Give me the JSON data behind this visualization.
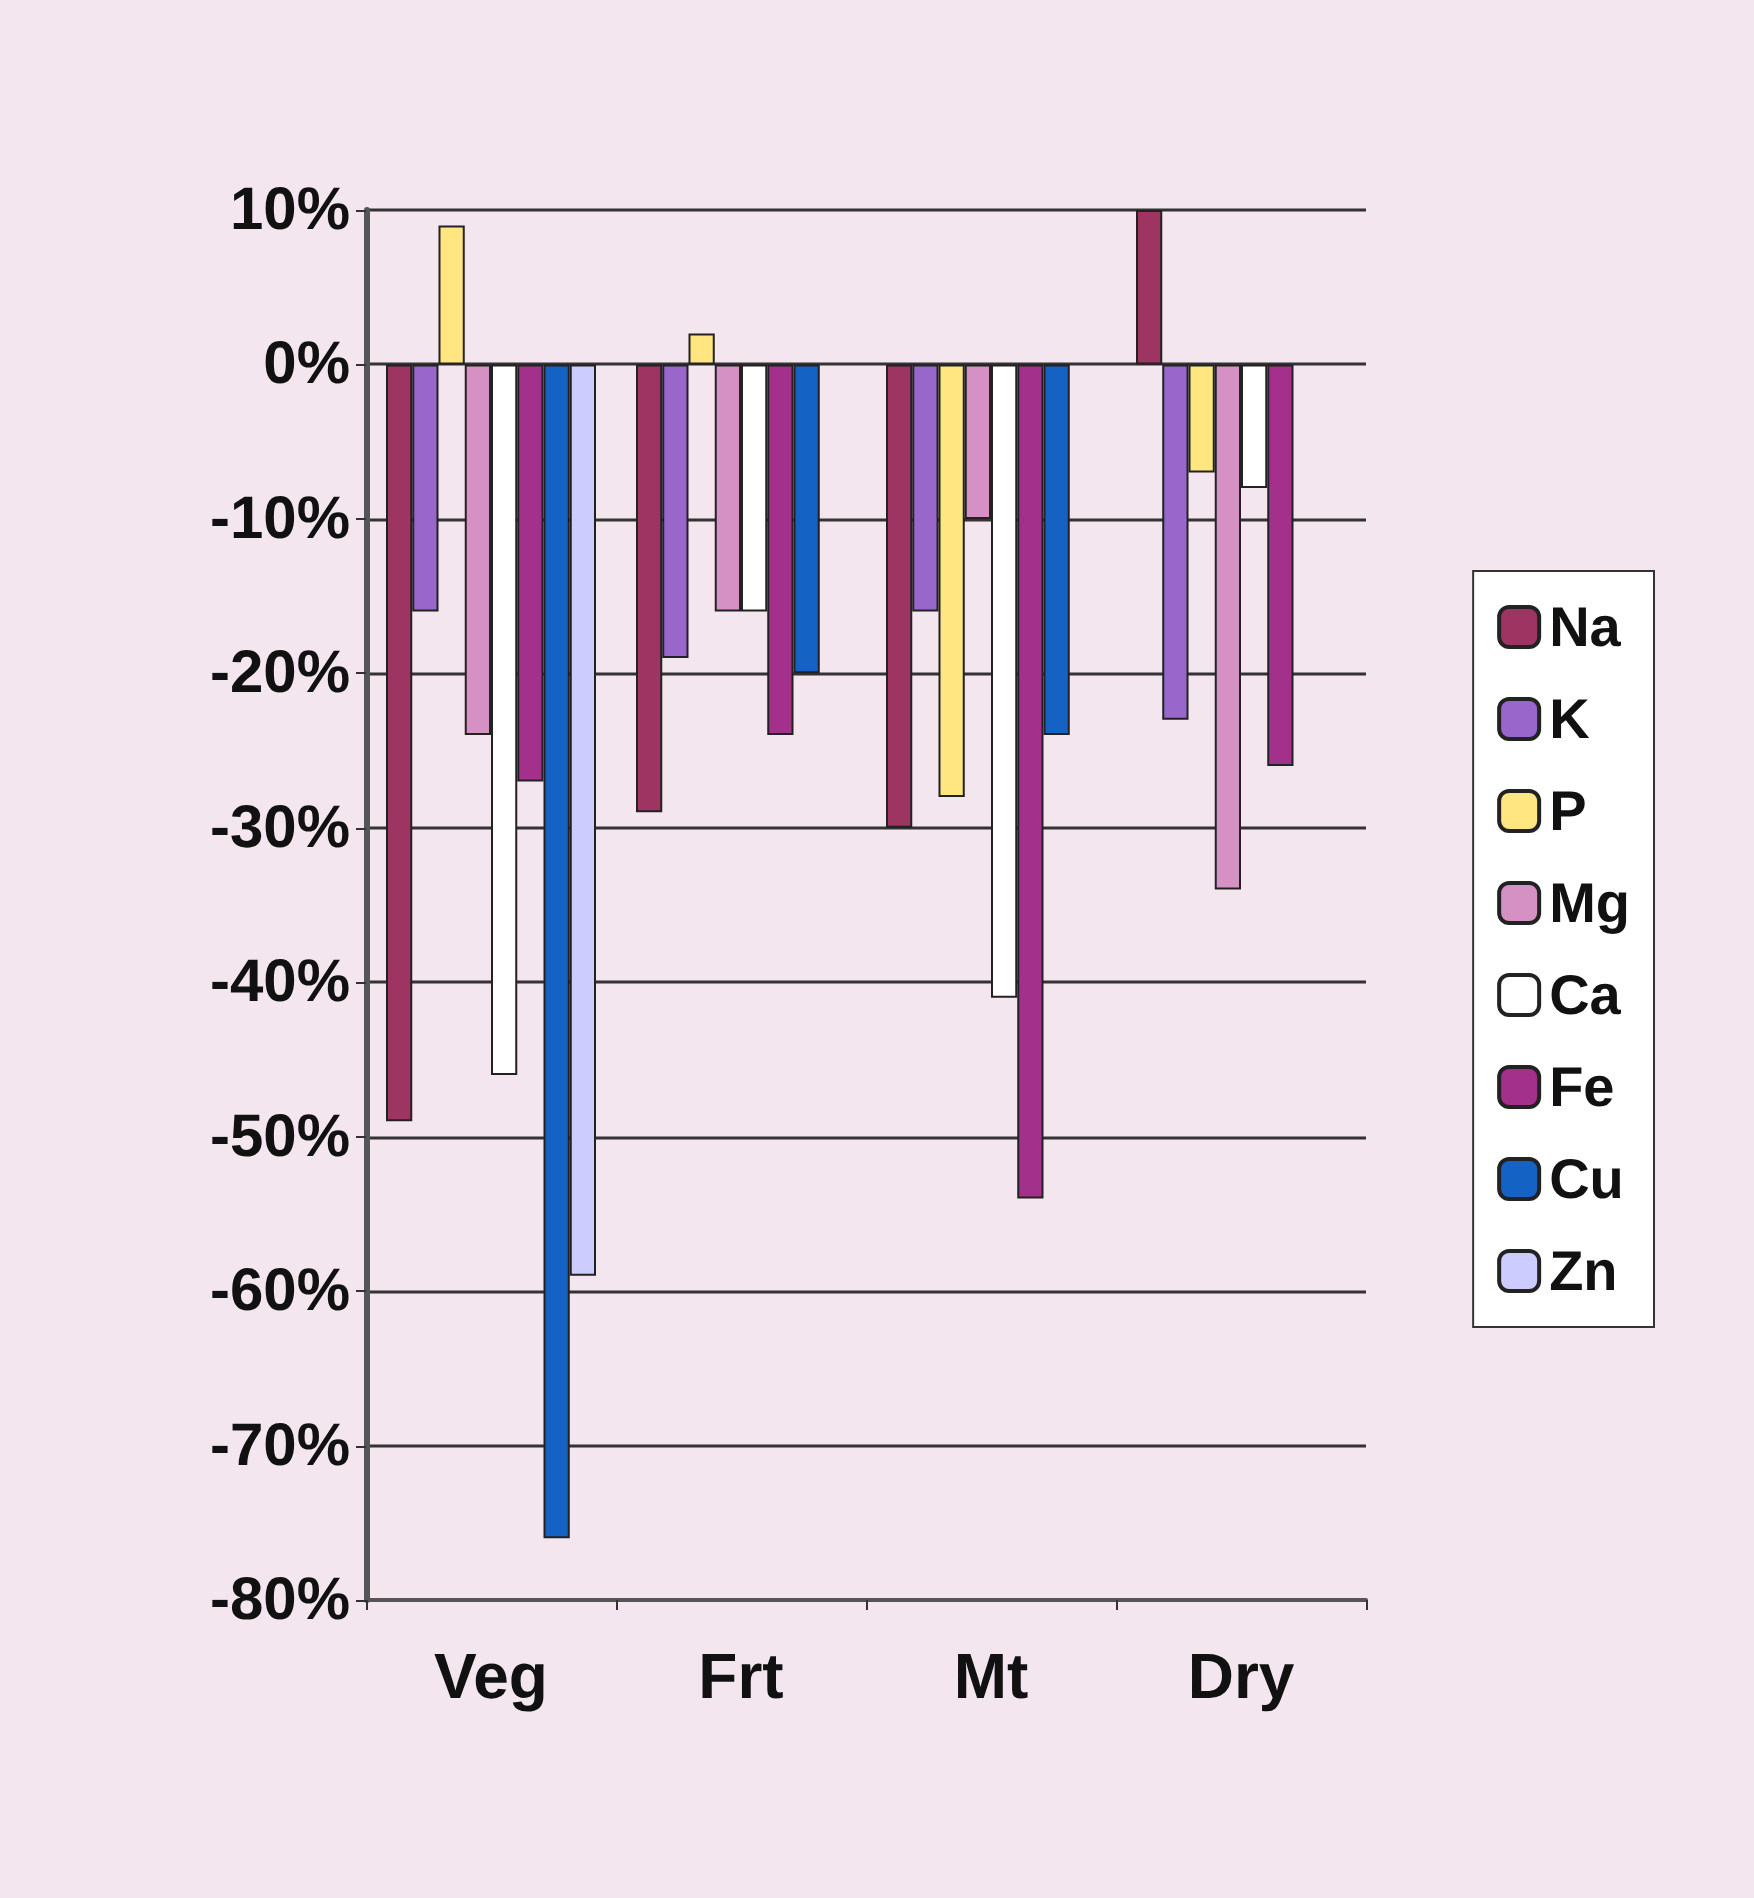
{
  "chart_data": {
    "type": "bar",
    "categories": [
      "Veg",
      "Frt",
      "Mt",
      "Dry"
    ],
    "series": [
      {
        "name": "Na",
        "color": "#9e3462",
        "values": [
          -49,
          -29,
          -30,
          10
        ]
      },
      {
        "name": "K",
        "color": "#9966cc",
        "values": [
          -16,
          -19,
          -16,
          -23
        ]
      },
      {
        "name": "P",
        "color": "#ffe680",
        "values": [
          9,
          2,
          -28,
          -7
        ]
      },
      {
        "name": "Mg",
        "color": "#d590c4",
        "values": [
          -24,
          -16,
          -10,
          -34
        ]
      },
      {
        "name": "Ca",
        "color": "#ffffff",
        "values": [
          -46,
          -16,
          -41,
          -8
        ]
      },
      {
        "name": "Fe",
        "color": "#a3308a",
        "values": [
          -27,
          -24,
          -54,
          -26
        ]
      },
      {
        "name": "Cu",
        "color": "#1463c4",
        "values": [
          -76,
          -20,
          -24,
          null
        ]
      },
      {
        "name": "Zn",
        "color": "#ccccff",
        "values": [
          -59,
          null,
          null,
          null
        ]
      }
    ],
    "ylim": [
      -80,
      10
    ],
    "yticks": [
      {
        "value": -80,
        "label": "-80%"
      },
      {
        "value": -70,
        "label": "-70%"
      },
      {
        "value": -60,
        "label": "-60%"
      },
      {
        "value": -50,
        "label": "-50%"
      },
      {
        "value": -40,
        "label": "-40%"
      },
      {
        "value": -30,
        "label": "-30%"
      },
      {
        "value": -20,
        "label": "-20%"
      },
      {
        "value": -10,
        "label": "-10%"
      },
      {
        "value": 0,
        "label": "0%"
      },
      {
        "value": 10,
        "label": "10%"
      }
    ],
    "grid": "y",
    "legend": "right"
  }
}
